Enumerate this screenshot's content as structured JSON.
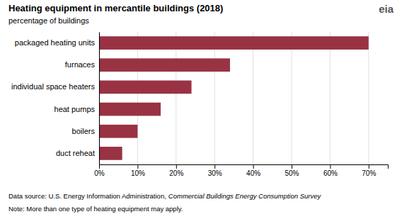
{
  "chart_data": {
    "type": "bar",
    "orientation": "horizontal",
    "title": "Heating equipment in mercantile buildings (2018)",
    "subtitle": "percentage of buildings",
    "categories": [
      "duct reheat",
      "boilers",
      "heat pumps",
      "individual space heaters",
      "furnaces",
      "packaged heating units"
    ],
    "values": [
      6,
      10,
      16,
      24,
      34,
      70
    ],
    "color": "#993344",
    "xlim": [
      0,
      75
    ],
    "xticks": [
      {
        "value": 0,
        "label": "0%"
      },
      {
        "value": 10,
        "label": "10%"
      },
      {
        "value": 20,
        "label": "20%"
      },
      {
        "value": 30,
        "label": "30%"
      },
      {
        "value": 40,
        "label": "40%"
      },
      {
        "value": 50,
        "label": "50%"
      },
      {
        "value": 60,
        "label": "60%"
      },
      {
        "value": 70,
        "label": "70%"
      }
    ],
    "grid": true,
    "annotations": [
      "eia",
      "Data source: U.S. Energy Information Administration,",
      "Commercial Buildings Energy Consumption Survey",
      "Note: More than one type of heating equipment may apply."
    ]
  }
}
